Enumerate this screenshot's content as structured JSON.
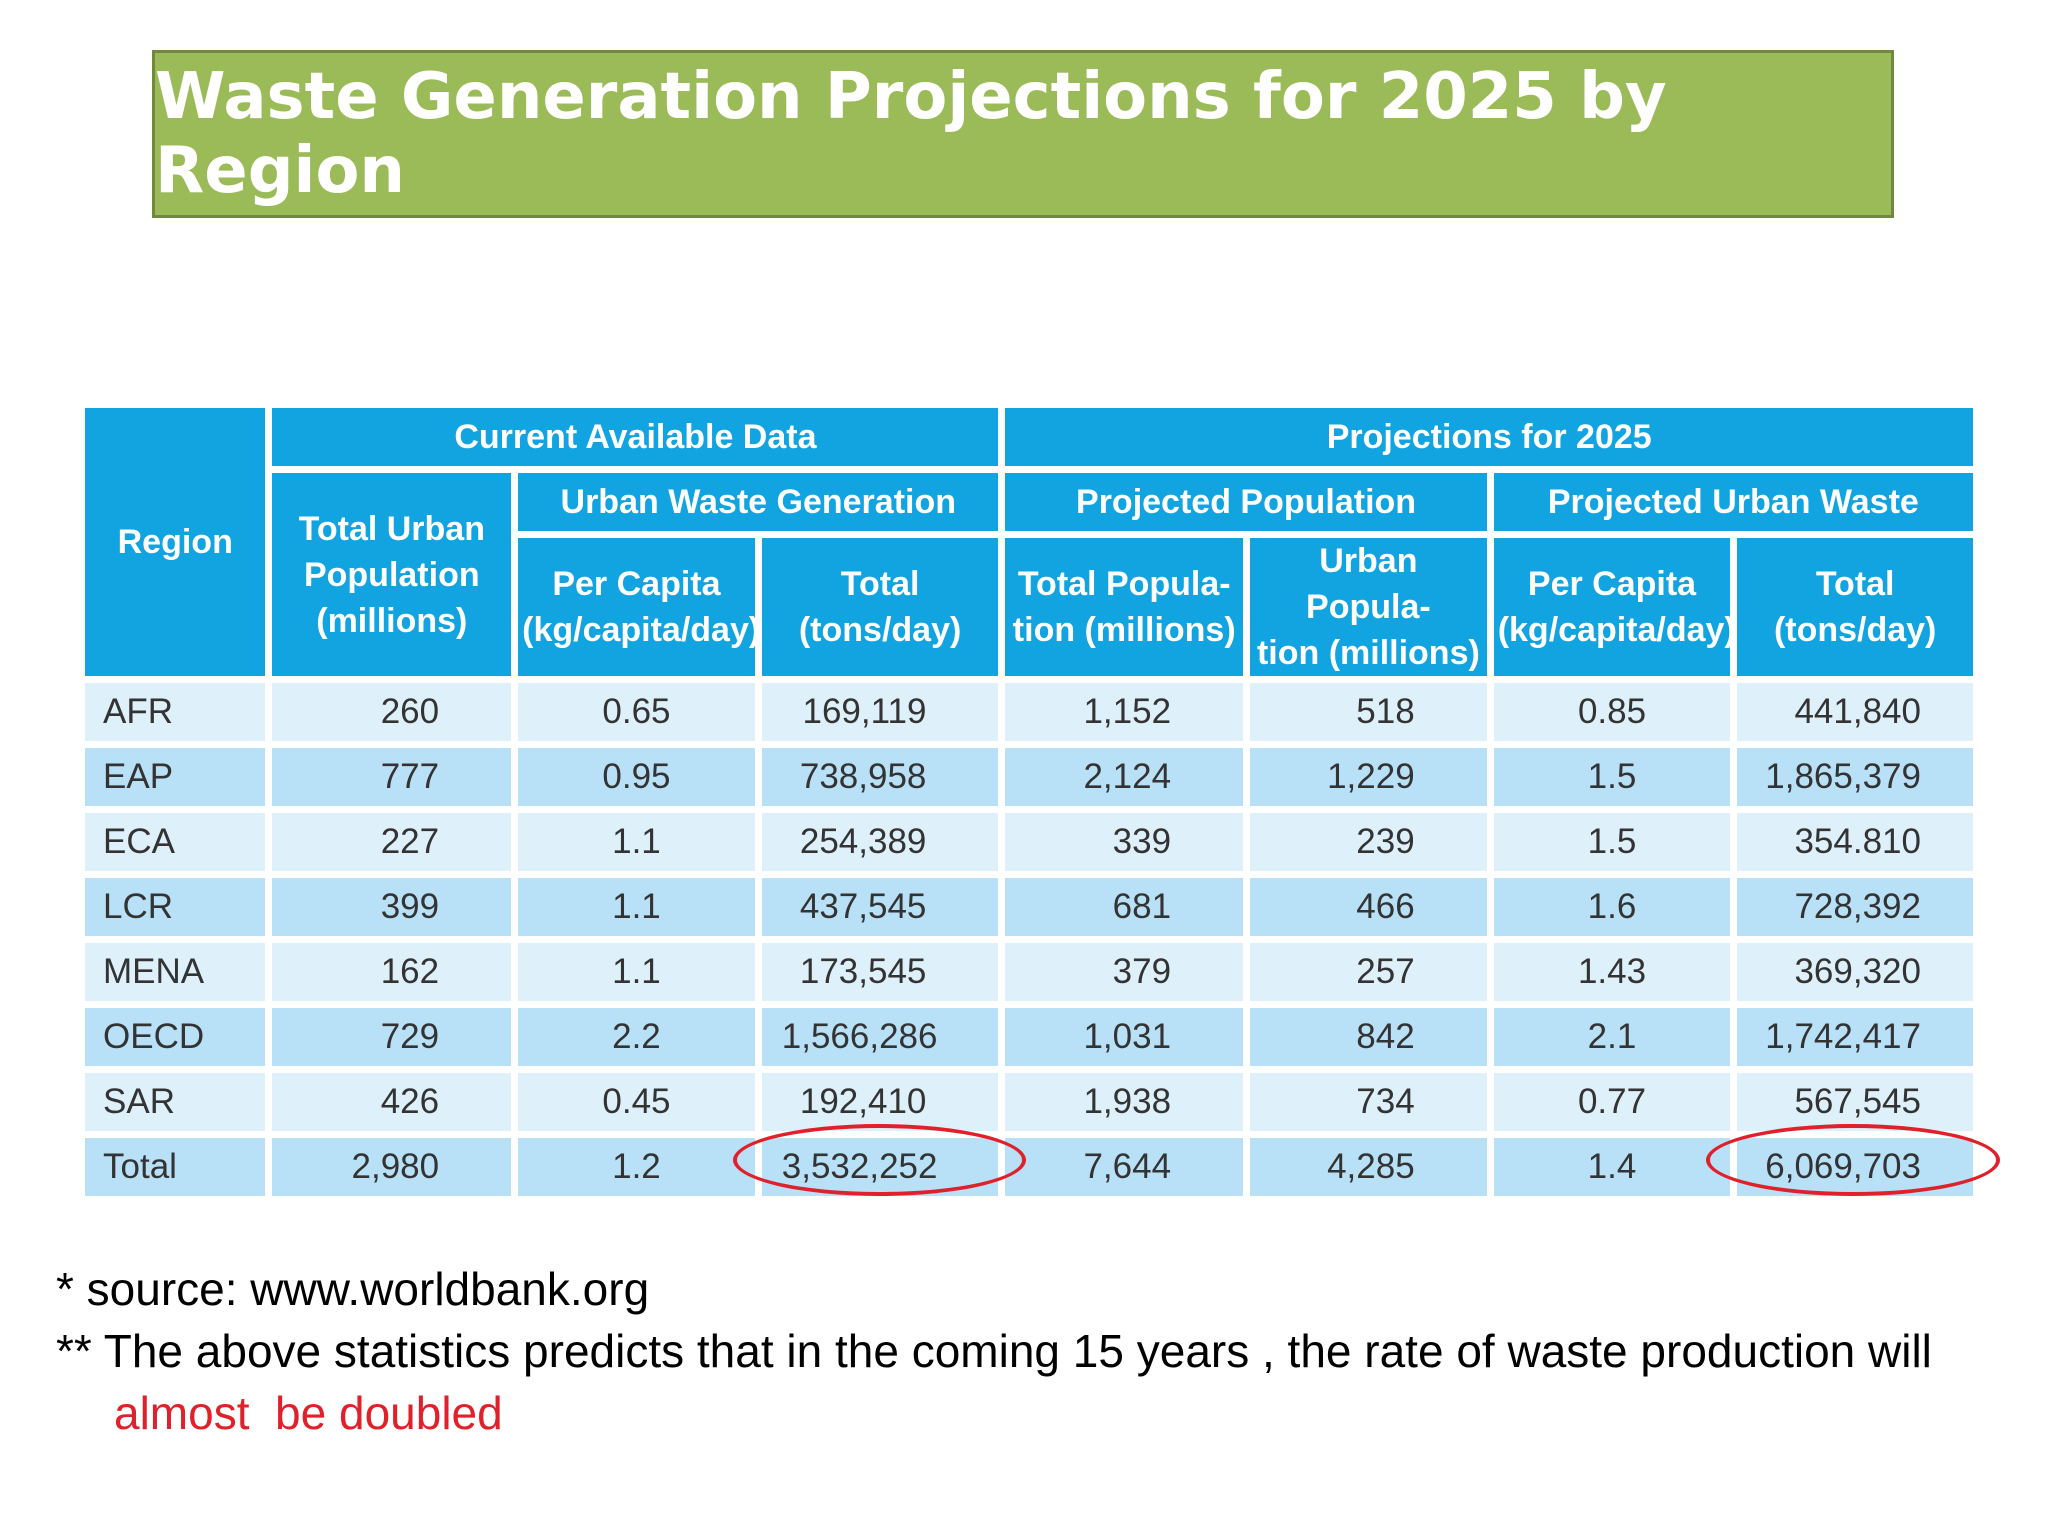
{
  "title": "Waste Generation Projections for 2025 by Region",
  "colors": {
    "title_bg": "#9bbb59",
    "header_bg": "#12a4e0",
    "row_light": "#def0fa",
    "row_dark": "#b8e0f7",
    "highlight": "#e0202a"
  },
  "table": {
    "region_header": "Region",
    "group_current": "Current Available Data",
    "group_projections": "Projections for 2025",
    "sub_urban_waste": "Urban Waste Generation",
    "sub_projected_population": "Projected Population",
    "sub_projected_urban_waste": "Projected Urban Waste",
    "col_total_urban_population": [
      "Total Urban",
      "Population",
      "(millions)"
    ],
    "col_per_capita": [
      "Per Capita",
      "(kg/capita/day)"
    ],
    "col_total": [
      "Total",
      "(tons/day)"
    ],
    "col_total_population": [
      "Total Popula-",
      "tion (millions)"
    ],
    "col_urban_population": [
      "Urban Popula-",
      "tion (millions)"
    ],
    "col_per_capita_2025": [
      "Per Capita",
      "(kg/capita/day)"
    ],
    "col_total_2025": [
      "Total",
      "(tons/day)"
    ],
    "rows": [
      [
        "AFR",
        "260",
        "0.65",
        "169,119",
        "1,152",
        "518",
        "0.85",
        "441,840"
      ],
      [
        "EAP",
        "777",
        "0.95",
        "738,958",
        "2,124",
        "1,229",
        "1.5",
        "1,865,379"
      ],
      [
        "ECA",
        "227",
        "1.1",
        "254,389",
        "339",
        "239",
        "1.5",
        "354.810"
      ],
      [
        "LCR",
        "399",
        "1.1",
        "437,545",
        "681",
        "466",
        "1.6",
        "728,392"
      ],
      [
        "MENA",
        "162",
        "1.1",
        "173,545",
        "379",
        "257",
        "1.43",
        "369,320"
      ],
      [
        "OECD",
        "729",
        "2.2",
        "1,566,286",
        "1,031",
        "842",
        "2.1",
        "1,742,417"
      ],
      [
        "SAR",
        "426",
        "0.45",
        "192,410",
        "1,938",
        "734",
        "0.77",
        "567,545"
      ],
      [
        "Total",
        "2,980",
        "1.2",
        "3,532,252",
        "7,644",
        "4,285",
        "1.4",
        "6,069,703"
      ]
    ]
  },
  "notes": {
    "source": "* source: www.worldbank.org",
    "prediction": "** The above statistics predicts that in the coming 15 years , the rate of waste production will",
    "conclusion": "almost  be doubled"
  }
}
